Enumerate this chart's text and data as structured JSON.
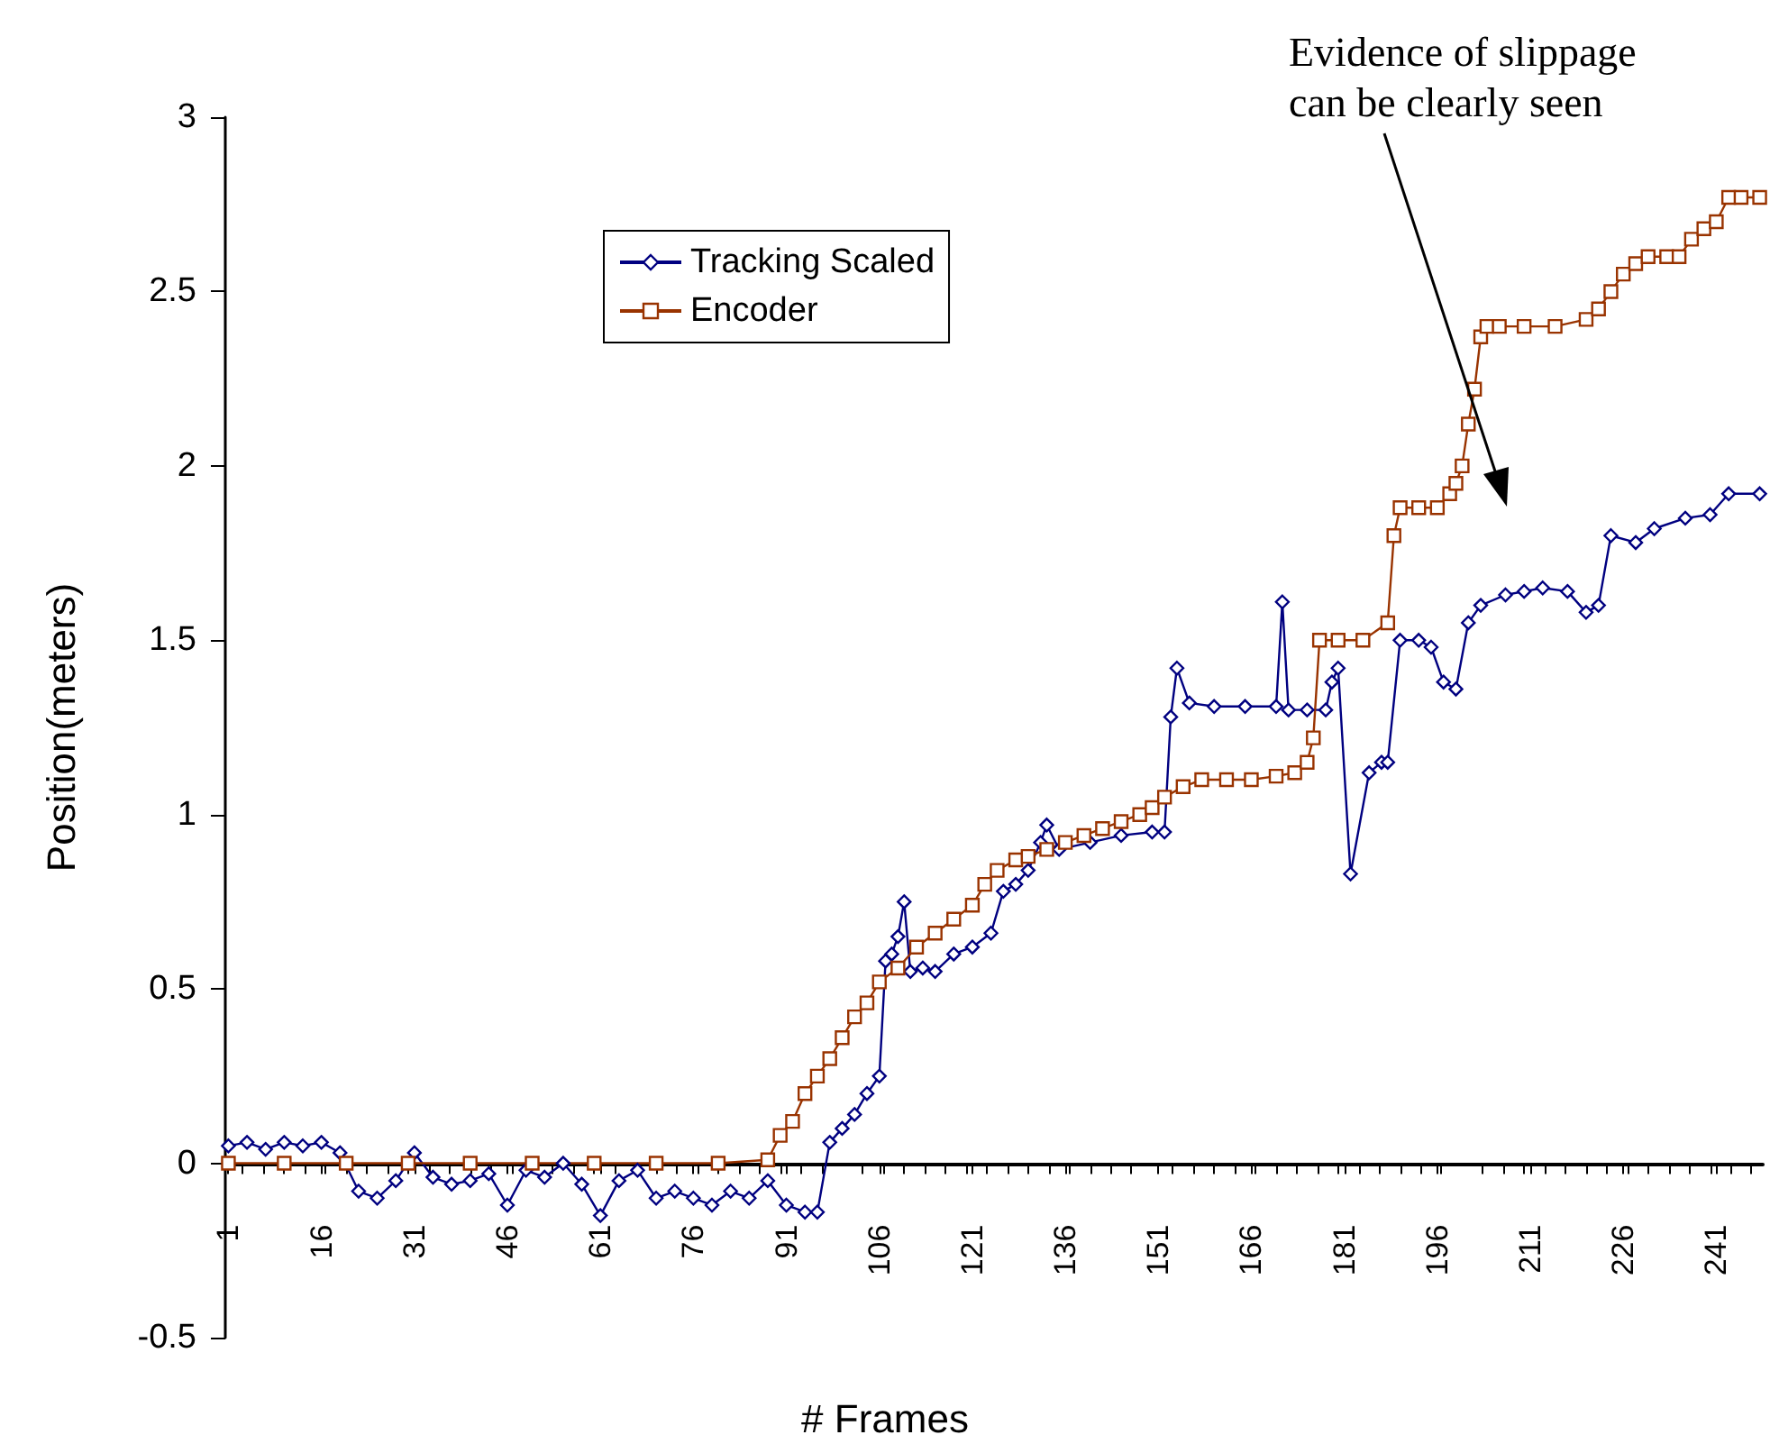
{
  "chart_data": {
    "type": "line",
    "xlabel": "# Frames",
    "ylabel": "Position(meters)",
    "annotations": [
      "Evidence of slippage can be clearly seen"
    ],
    "xlim": [
      0.5,
      248.5
    ],
    "xticks": [
      1,
      16,
      31,
      46,
      61,
      76,
      91,
      106,
      121,
      136,
      151,
      166,
      181,
      196,
      211,
      226,
      241
    ],
    "ylim": [
      -0.5,
      3
    ],
    "yticks": [
      -0.5,
      0,
      0.5,
      1,
      1.5,
      2,
      2.5,
      3
    ],
    "grid": false,
    "legend": "top left",
    "line_style": "solid",
    "series": [
      {
        "name": "Tracking Scaled",
        "color": "#000080",
        "marker": "diamond",
        "x": [
          1,
          4,
          7,
          10,
          13,
          16,
          19,
          22,
          25,
          28,
          31,
          34,
          37,
          40,
          43,
          46,
          49,
          52,
          55,
          58,
          61,
          64,
          67,
          70,
          73,
          76,
          79,
          82,
          85,
          88,
          91,
          94,
          96,
          98,
          100,
          102,
          104,
          106,
          107,
          108,
          109,
          110,
          111,
          113,
          115,
          118,
          121,
          124,
          126,
          128,
          130,
          132,
          133,
          135,
          140,
          145,
          150,
          152,
          153,
          154,
          156,
          160,
          165,
          170,
          171,
          172,
          175,
          178,
          179,
          180,
          182,
          185,
          187,
          188,
          190,
          193,
          195,
          197,
          199,
          201,
          203,
          207,
          210,
          213,
          217,
          220,
          222,
          224,
          228,
          231,
          236,
          240,
          243,
          248
        ],
        "values": [
          0.05,
          0.06,
          0.04,
          0.06,
          0.05,
          0.06,
          0.03,
          -0.08,
          -0.1,
          -0.05,
          0.03,
          -0.04,
          -0.06,
          -0.05,
          -0.03,
          -0.12,
          -0.02,
          -0.04,
          0,
          -0.06,
          -0.15,
          -0.05,
          -0.02,
          -0.1,
          -0.08,
          -0.1,
          -0.12,
          -0.08,
          -0.1,
          -0.05,
          -0.12,
          -0.14,
          -0.14,
          0.06,
          0.1,
          0.14,
          0.2,
          0.25,
          0.58,
          0.6,
          0.65,
          0.75,
          0.55,
          0.56,
          0.55,
          0.6,
          0.62,
          0.66,
          0.78,
          0.8,
          0.84,
          0.92,
          0.97,
          0.9,
          0.92,
          0.94,
          0.95,
          0.95,
          1.28,
          1.42,
          1.32,
          1.31,
          1.31,
          1.31,
          1.61,
          1.3,
          1.3,
          1.3,
          1.38,
          1.42,
          0.83,
          1.12,
          1.15,
          1.15,
          1.5,
          1.5,
          1.48,
          1.38,
          1.36,
          1.55,
          1.6,
          1.63,
          1.64,
          1.65,
          1.64,
          1.58,
          1.6,
          1.8,
          1.78,
          1.82,
          1.85,
          1.86,
          1.92,
          1.92
        ]
      },
      {
        "name": "Encoder",
        "color": "#993300",
        "marker": "square",
        "x": [
          1,
          10,
          20,
          30,
          40,
          50,
          60,
          70,
          80,
          88,
          90,
          92,
          94,
          96,
          98,
          100,
          102,
          104,
          106,
          109,
          112,
          115,
          118,
          121,
          123,
          125,
          128,
          130,
          133,
          136,
          139,
          142,
          145,
          148,
          150,
          152,
          155,
          158,
          162,
          166,
          170,
          173,
          175,
          176,
          177,
          180,
          184,
          188,
          189,
          190,
          193,
          196,
          198,
          199,
          200,
          201,
          202,
          203,
          204,
          206,
          210,
          215,
          220,
          222,
          224,
          226,
          228,
          230,
          233,
          235,
          237,
          239,
          241,
          243,
          245,
          248
        ],
        "values": [
          0,
          0,
          0,
          0,
          0,
          0,
          0,
          0,
          0,
          0.01,
          0.08,
          0.12,
          0.2,
          0.25,
          0.3,
          0.36,
          0.42,
          0.46,
          0.52,
          0.56,
          0.62,
          0.66,
          0.7,
          0.74,
          0.8,
          0.84,
          0.87,
          0.88,
          0.9,
          0.92,
          0.94,
          0.96,
          0.98,
          1.0,
          1.02,
          1.05,
          1.08,
          1.1,
          1.1,
          1.1,
          1.11,
          1.12,
          1.15,
          1.22,
          1.5,
          1.5,
          1.5,
          1.55,
          1.8,
          1.88,
          1.88,
          1.88,
          1.92,
          1.95,
          2.0,
          2.12,
          2.22,
          2.37,
          2.4,
          2.4,
          2.4,
          2.4,
          2.42,
          2.45,
          2.5,
          2.55,
          2.58,
          2.6,
          2.6,
          2.6,
          2.65,
          2.68,
          2.7,
          2.77,
          2.77,
          2.77
        ]
      }
    ]
  }
}
